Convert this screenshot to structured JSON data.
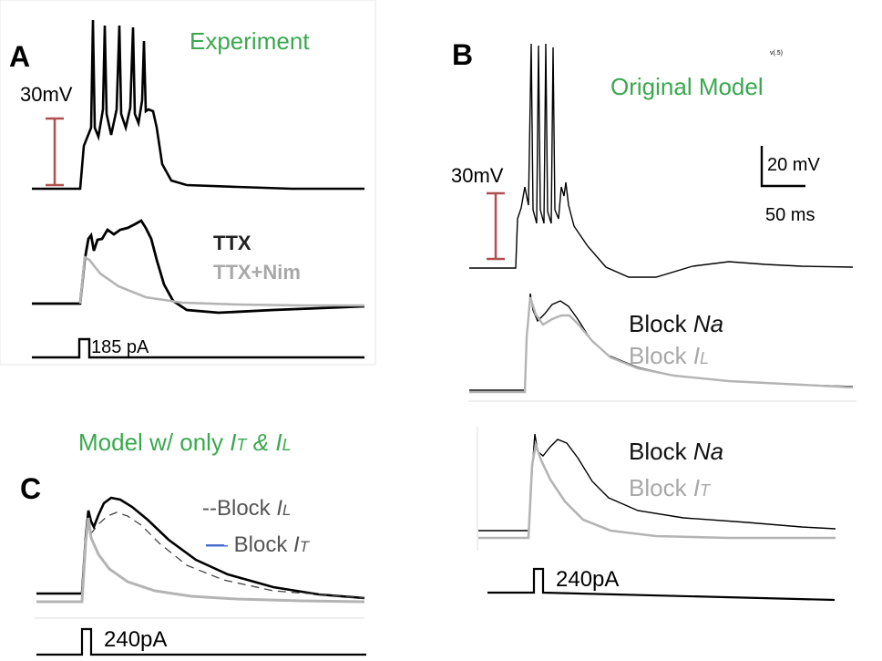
{
  "panel_a": {
    "letter": "A",
    "title": "Experiment",
    "scale_label": "30mV",
    "legend_ttx": "TTX",
    "legend_ttx_nim": "TTX+Nim",
    "stim_label": "185 pA"
  },
  "panel_b": {
    "letter": "B",
    "title": "Original Model",
    "tiny_label": "v(.5)",
    "scale_label": "30mV",
    "scalebar_mv": "20 mV",
    "scalebar_ms": "50 ms",
    "legend1_black_prefix": "Block ",
    "legend1_black_ion": "Na",
    "legend1_gray_prefix": "Block ",
    "legend1_gray_ion": "I",
    "legend1_gray_sub": "L",
    "legend2_black_prefix": "Block ",
    "legend2_black_ion": "Na",
    "legend2_gray_prefix": "Block ",
    "legend2_gray_ion": "I",
    "legend2_gray_sub": "T",
    "stim_label": "240pA"
  },
  "panel_c": {
    "letter": "C",
    "title_prefix": "Model w/ only ",
    "title_i1": "I",
    "title_sub1": "T",
    "title_amp": " & ",
    "title_i2": "I",
    "title_sub2": "L",
    "legend1_prefix": "--Block ",
    "legend1_ion": "I",
    "legend1_sub": "L",
    "legend2_dash": "—",
    "legend2_prefix": " Block ",
    "legend2_ion": "I",
    "legend2_sub": "T",
    "stim_label": "240pA"
  },
  "colors": {
    "scale_bar": "#b0504f",
    "title_green": "#3aa84f",
    "trace_black": "#000000",
    "trace_gray": "#b4b4b4",
    "legend_blue": "#4a6fd0"
  }
}
